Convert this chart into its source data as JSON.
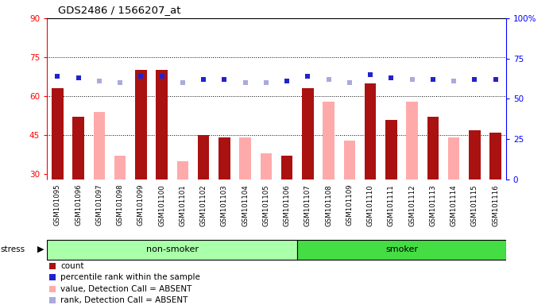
{
  "title": "GDS2486 / 1566207_at",
  "samples": [
    "GSM101095",
    "GSM101096",
    "GSM101097",
    "GSM101098",
    "GSM101099",
    "GSM101100",
    "GSM101101",
    "GSM101102",
    "GSM101103",
    "GSM101104",
    "GSM101105",
    "GSM101106",
    "GSM101107",
    "GSM101108",
    "GSM101109",
    "GSM101110",
    "GSM101111",
    "GSM101112",
    "GSM101113",
    "GSM101114",
    "GSM101115",
    "GSM101116"
  ],
  "count": [
    63,
    52,
    null,
    null,
    70,
    70,
    null,
    45,
    44,
    null,
    null,
    37,
    63,
    null,
    null,
    65,
    51,
    null,
    52,
    null,
    47,
    46
  ],
  "absent_value": [
    null,
    null,
    54,
    37,
    null,
    null,
    35,
    null,
    null,
    44,
    38,
    null,
    null,
    58,
    43,
    null,
    null,
    58,
    null,
    44,
    null,
    null
  ],
  "percentile_rank": [
    64,
    63,
    null,
    null,
    64,
    64,
    null,
    62,
    62,
    null,
    null,
    61,
    64,
    null,
    null,
    65,
    63,
    null,
    62,
    null,
    62,
    62
  ],
  "absent_rank": [
    null,
    null,
    61,
    60,
    null,
    null,
    60,
    null,
    null,
    60,
    60,
    null,
    null,
    62,
    60,
    null,
    null,
    62,
    null,
    61,
    null,
    null
  ],
  "non_smoker_count": 12,
  "ylim_left": [
    28,
    90
  ],
  "ylim_right": [
    0,
    100
  ],
  "yticks_left": [
    30,
    45,
    60,
    75,
    90
  ],
  "yticks_right": [
    0,
    25,
    50,
    75,
    100
  ],
  "hlines": [
    45,
    60,
    75
  ],
  "bar_color": "#aa1111",
  "absent_bar_color": "#ffaaaa",
  "rank_color": "#2222cc",
  "absent_rank_color": "#aaaadd",
  "non_smoker_color": "#aaffaa",
  "smoker_color": "#44dd44",
  "strip_border_color": "#000000",
  "bg_color": "#cccccc",
  "top_border_color": "#000000"
}
